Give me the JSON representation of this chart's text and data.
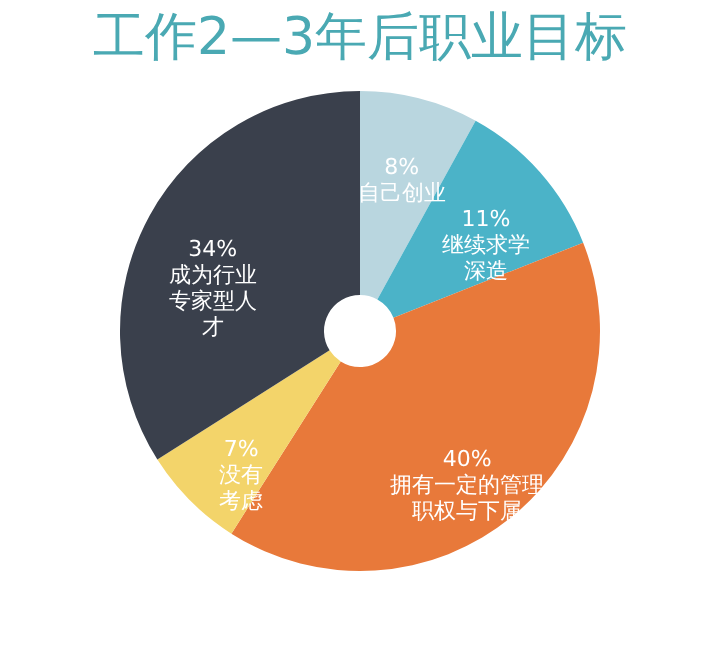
{
  "chart_data": {
    "type": "donut",
    "title": "工作2—3年后职业目标",
    "categories": [
      "自己创业",
      "继续求学深造",
      "拥有一定的管理职权与下属",
      "没有考虑",
      "成为行业专家型人才"
    ],
    "values": [
      8,
      11,
      40,
      7,
      34
    ],
    "value_labels": [
      "8%",
      "11%",
      "40%",
      "7%",
      "34%"
    ],
    "colors": [
      "#b9d6df",
      "#4bb3c8",
      "#e8793a",
      "#f3d46a",
      "#3a404c"
    ],
    "legend": false
  }
}
